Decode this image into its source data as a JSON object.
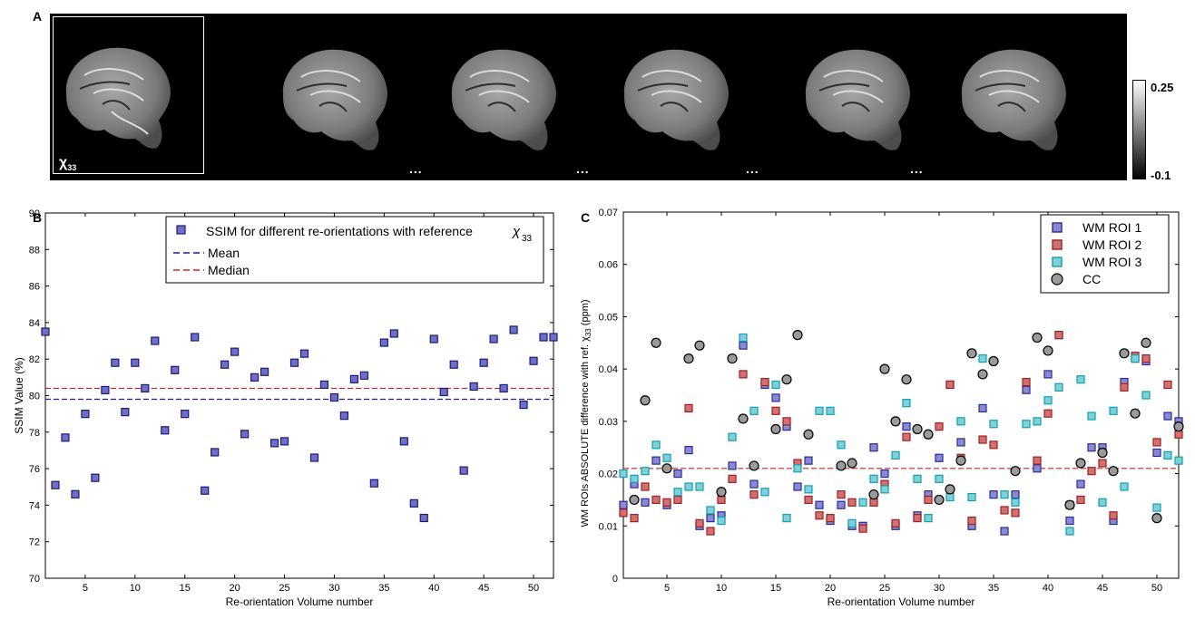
{
  "panel_labels": {
    "a": "A",
    "b": "B",
    "c": "C"
  },
  "panel_a": {
    "reference_label": "χ",
    "reference_sub": "33",
    "ellipsis": "...",
    "colorbar": {
      "max": "0.25",
      "min": "-0.1"
    }
  },
  "chart_data": [
    {
      "type": "scatter",
      "panel": "B",
      "xlabel": "Re-orientation Volume number",
      "ylabel": "SSIM Value (%)",
      "xlim": [
        1,
        52
      ],
      "ylim": [
        70,
        90
      ],
      "xticks": [
        5,
        10,
        15,
        20,
        25,
        30,
        35,
        40,
        45,
        50
      ],
      "yticks": [
        70,
        72,
        74,
        76,
        78,
        80,
        82,
        84,
        86,
        88,
        90
      ],
      "legend": {
        "position": "top-right",
        "entries": [
          "SSIM for different re-orientations with reference ",
          "Mean",
          "Median"
        ],
        "symbol": "χ",
        "symbol_sub": "33"
      },
      "series": [
        {
          "name": "SSIM",
          "color": "#6f6fc4",
          "edge": "#1a1a80",
          "x": [
            1,
            2,
            3,
            4,
            5,
            6,
            7,
            8,
            9,
            10,
            11,
            12,
            13,
            14,
            15,
            16,
            17,
            18,
            19,
            20,
            21,
            22,
            23,
            24,
            25,
            26,
            27,
            28,
            29,
            30,
            31,
            32,
            33,
            34,
            35,
            36,
            37,
            38,
            39,
            40,
            41,
            42,
            43,
            44,
            45,
            46,
            47,
            48,
            49,
            50,
            51,
            52
          ],
          "y": [
            83.5,
            75.1,
            77.7,
            74.6,
            79.0,
            75.5,
            80.3,
            81.8,
            79.1,
            81.8,
            80.4,
            83.0,
            78.1,
            81.4,
            79.0,
            83.2,
            74.8,
            76.9,
            81.7,
            82.4,
            77.9,
            81.0,
            81.3,
            77.4,
            77.5,
            81.8,
            82.3,
            76.6,
            80.6,
            79.9,
            78.9,
            80.9,
            81.1,
            75.2,
            82.9,
            83.4,
            77.5,
            74.1,
            73.3,
            83.1,
            80.2,
            81.7,
            75.9,
            80.5,
            81.8,
            83.1,
            80.4,
            83.6,
            79.5,
            81.9,
            83.2,
            83.2
          ]
        }
      ],
      "lines": [
        {
          "name": "Mean",
          "value": 79.8,
          "color": "#1a1aa0"
        },
        {
          "name": "Median",
          "value": 80.4,
          "color": "#d42020"
        }
      ]
    },
    {
      "type": "scatter",
      "panel": "C",
      "xlabel": "Re-orientation Volume number",
      "ylabel": "WM ROIs ABSOLUTE difference with ref. χ",
      "ylabel_sub": "33",
      "ylabel_unit": " (ppm)",
      "xlim": [
        1,
        52
      ],
      "ylim": [
        0,
        0.07
      ],
      "xticks": [
        5,
        10,
        15,
        20,
        25,
        30,
        35,
        40,
        45,
        50
      ],
      "yticks": [
        0,
        0.01,
        0.02,
        0.03,
        0.04,
        0.05,
        0.06,
        0.07
      ],
      "legend": {
        "position": "top-right",
        "entries": [
          "WM ROI 1",
          "WM ROI 2",
          "WM ROI 3",
          "CC"
        ]
      },
      "lines": [
        {
          "name": "threshold",
          "value": 0.021,
          "color": "#d42020"
        }
      ],
      "series": [
        {
          "name": "WM ROI 1",
          "marker": "square",
          "color": "#8a8ad0",
          "edge": "#2a2aa0",
          "x": [
            1,
            2,
            3,
            4,
            5,
            6,
            7,
            8,
            9,
            10,
            11,
            12,
            13,
            14,
            15,
            16,
            17,
            18,
            19,
            20,
            21,
            22,
            23,
            24,
            25,
            26,
            27,
            28,
            29,
            30,
            31,
            32,
            33,
            34,
            35,
            36,
            37,
            38,
            39,
            40,
            41,
            42,
            43,
            44,
            45,
            46,
            47,
            48,
            49,
            50,
            51,
            52
          ],
          "y": [
            0.014,
            0.018,
            0.0145,
            0.0225,
            0.014,
            0.02,
            0.0245,
            0.01,
            0.0115,
            0.012,
            0.0215,
            0.0445,
            0.018,
            0.037,
            0.0345,
            0.029,
            0.0175,
            0.0225,
            0.014,
            0.011,
            0.014,
            0.01,
            0.01,
            0.025,
            0.02,
            0.01,
            0.029,
            0.012,
            0.016,
            0.023,
            0.037,
            0.026,
            0.01,
            0.0325,
            0.016,
            0.009,
            0.016,
            0.036,
            0.021,
            0.039,
            0.0465,
            0.011,
            0.018,
            0.025,
            0.025,
            0.011,
            0.0375,
            0.042,
            0.0415,
            0.024,
            0.031,
            0.03
          ]
        },
        {
          "name": "WM ROI 2",
          "marker": "square",
          "color": "#d07070",
          "edge": "#a02020",
          "x": [
            1,
            2,
            3,
            4,
            5,
            6,
            7,
            8,
            9,
            10,
            11,
            12,
            13,
            14,
            15,
            16,
            17,
            18,
            19,
            20,
            21,
            22,
            23,
            24,
            25,
            26,
            27,
            28,
            29,
            30,
            31,
            32,
            33,
            34,
            35,
            36,
            37,
            38,
            39,
            40,
            41,
            42,
            43,
            44,
            45,
            46,
            47,
            48,
            49,
            50,
            51,
            52
          ],
          "y": [
            0.0125,
            0.0115,
            0.0175,
            0.015,
            0.0145,
            0.015,
            0.0325,
            0.0105,
            0.009,
            0.015,
            0.019,
            0.039,
            0.016,
            0.0375,
            0.032,
            0.03,
            0.022,
            0.015,
            0.012,
            0.0115,
            0.016,
            0.0145,
            0.0095,
            0.0145,
            0.018,
            0.0105,
            0.027,
            0.0115,
            0.015,
            0.029,
            0.037,
            0.023,
            0.011,
            0.0265,
            0.0255,
            0.013,
            0.0125,
            0.0375,
            0.0225,
            0.0315,
            0.0465,
            0.014,
            0.015,
            0.0205,
            0.022,
            0.012,
            0.0365,
            0.0425,
            0.042,
            0.026,
            0.037,
            0.0275
          ]
        },
        {
          "name": "WM ROI 3",
          "marker": "square",
          "color": "#7fd0d8",
          "edge": "#10a0b0",
          "x": [
            1,
            2,
            3,
            4,
            5,
            6,
            7,
            8,
            9,
            10,
            11,
            12,
            13,
            14,
            15,
            16,
            17,
            18,
            19,
            20,
            21,
            22,
            23,
            24,
            25,
            26,
            27,
            28,
            29,
            30,
            31,
            32,
            33,
            34,
            35,
            36,
            37,
            38,
            39,
            40,
            41,
            42,
            43,
            44,
            45,
            46,
            47,
            48,
            49,
            50,
            51,
            52
          ],
          "y": [
            0.02,
            0.019,
            0.0205,
            0.0255,
            0.023,
            0.0165,
            0.0175,
            0.0175,
            0.013,
            0.011,
            0.027,
            0.046,
            0.032,
            0.0165,
            0.037,
            0.0115,
            0.021,
            0.017,
            0.032,
            0.032,
            0.0255,
            0.0105,
            0.0145,
            0.019,
            0.017,
            0.0235,
            0.0335,
            0.019,
            0.0115,
            0.019,
            0.0155,
            0.03,
            0.0155,
            0.042,
            0.0295,
            0.016,
            0.0145,
            0.0295,
            0.03,
            0.034,
            0.0365,
            0.009,
            0.038,
            0.031,
            0.0145,
            0.032,
            0.0175,
            0.042,
            0.035,
            0.0135,
            0.0235,
            0.0225
          ]
        },
        {
          "name": "CC",
          "marker": "circle",
          "color": "#9a9a9a",
          "edge": "#000000",
          "x": [
            2,
            3,
            4,
            5,
            7,
            8,
            10,
            11,
            12,
            13,
            15,
            16,
            17,
            18,
            21,
            22,
            24,
            25,
            26,
            27,
            28,
            29,
            30,
            31,
            32,
            33,
            34,
            35,
            37,
            39,
            40,
            42,
            43,
            45,
            46,
            47,
            48,
            49,
            50,
            52
          ],
          "y": [
            0.015,
            0.034,
            0.045,
            0.021,
            0.042,
            0.0445,
            0.0165,
            0.042,
            0.0305,
            0.0215,
            0.0285,
            0.038,
            0.0465,
            0.0275,
            0.0215,
            0.022,
            0.016,
            0.04,
            0.03,
            0.038,
            0.0285,
            0.0275,
            0.015,
            0.017,
            0.0225,
            0.043,
            0.039,
            0.0415,
            0.0205,
            0.046,
            0.0435,
            0.014,
            0.022,
            0.024,
            0.0205,
            0.043,
            0.0315,
            0.045,
            0.0115,
            0.029
          ]
        }
      ]
    }
  ]
}
